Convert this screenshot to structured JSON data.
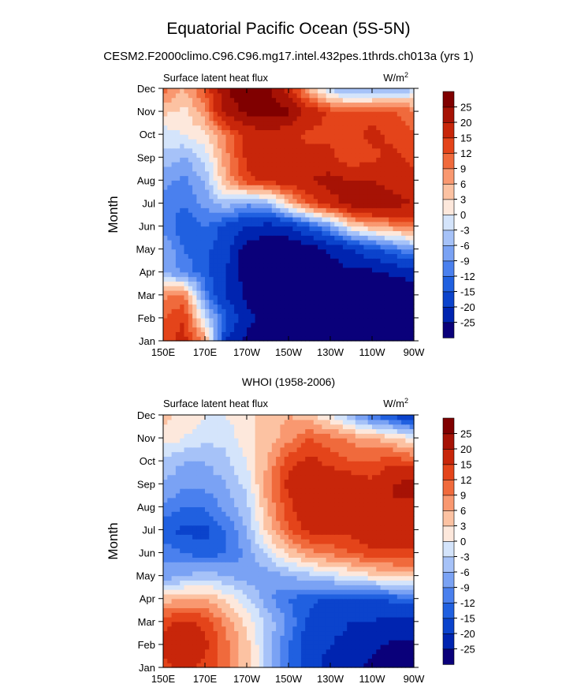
{
  "figure": {
    "title": "Equatorial Pacific Ocean (5S-5N)",
    "subtitle": "CESM2.F2000climo.C96.C96.mg17.intel.432pes.1thrds.ch013a (yrs 1)"
  },
  "colors": {
    "levels": [
      "#0a007a",
      "#0024b0",
      "#0b43cc",
      "#2060e0",
      "#4a80ee",
      "#7aa2f4",
      "#a6c2f8",
      "#d4e4fb",
      "#fde8dc",
      "#fcc2a2",
      "#f99870",
      "#f06a3c",
      "#e4441a",
      "#c8260a",
      "#a61205",
      "#800000"
    ],
    "axis": "#000000"
  },
  "chart_data": [
    {
      "type": "heatmap",
      "title": "",
      "left_label": "Surface latent heat flux",
      "units": "W/m",
      "units_superscript": "2",
      "xlabel": "",
      "ylabel": "Month",
      "x_ticks": [
        "150E",
        "170E",
        "170W",
        "150W",
        "130W",
        "110W",
        "90W"
      ],
      "x_tick_lon": [
        150,
        170,
        190,
        210,
        230,
        250,
        270
      ],
      "xlim": [
        150,
        270
      ],
      "y_ticks": [
        "Jan",
        "Feb",
        "Mar",
        "Apr",
        "May",
        "Jun",
        "Jul",
        "Aug",
        "Sep",
        "Oct",
        "Nov",
        "Dec"
      ],
      "y_tick_month": [
        1,
        2,
        3,
        4,
        5,
        6,
        7,
        8,
        9,
        10,
        11,
        12
      ],
      "ylim": [
        1,
        12
      ],
      "colorbar_levels": [
        "25",
        "20",
        "15",
        "12",
        "9",
        "6",
        "3",
        "0",
        "-3",
        "-6",
        "-9",
        "-12",
        "-15",
        "-20",
        "-25"
      ],
      "bounds": [
        -25,
        -20,
        -15,
        -12,
        -9,
        -6,
        -3,
        0,
        3,
        6,
        9,
        12,
        15,
        20,
        25
      ],
      "lon": [
        150,
        160,
        170,
        180,
        190,
        200,
        210,
        220,
        230,
        240,
        250,
        260,
        270
      ],
      "month": [
        1,
        2,
        3,
        4,
        5,
        6,
        7,
        8,
        9,
        10,
        11,
        12
      ],
      "values": [
        [
          14,
          16,
          8,
          -20,
          -26,
          -26,
          -26,
          -28,
          -30,
          -30,
          -30,
          -30,
          -30
        ],
        [
          12,
          15,
          -2,
          -14,
          -24,
          -26,
          -28,
          -28,
          -30,
          -30,
          -30,
          -30,
          -30
        ],
        [
          8,
          10,
          -10,
          -20,
          -26,
          -28,
          -28,
          -28,
          -30,
          -30,
          -30,
          -30,
          -30
        ],
        [
          -6,
          -10,
          -14,
          -20,
          -28,
          -30,
          -30,
          -30,
          -28,
          -26,
          -26,
          -24,
          -22
        ],
        [
          -6,
          -12,
          -14,
          -18,
          -28,
          -30,
          -30,
          -28,
          -24,
          -20,
          -16,
          -12,
          -8
        ],
        [
          -10,
          -14,
          -12,
          -16,
          -20,
          -22,
          -20,
          -14,
          -8,
          2,
          6,
          8,
          10
        ],
        [
          -10,
          -12,
          -8,
          -4,
          -8,
          -6,
          4,
          12,
          18,
          22,
          24,
          22,
          20
        ],
        [
          -8,
          -10,
          -6,
          6,
          14,
          16,
          18,
          20,
          22,
          20,
          20,
          18,
          16
        ],
        [
          -4,
          -6,
          -2,
          8,
          16,
          20,
          20,
          16,
          16,
          12,
          14,
          16,
          14
        ],
        [
          -2,
          0,
          2,
          10,
          16,
          18,
          16,
          14,
          14,
          14,
          16,
          14,
          12
        ],
        [
          4,
          2,
          8,
          22,
          26,
          28,
          26,
          18,
          14,
          12,
          14,
          12,
          10
        ],
        [
          10,
          6,
          12,
          24,
          30,
          26,
          18,
          4,
          -4,
          -8,
          -8,
          -6,
          -4
        ]
      ]
    },
    {
      "type": "heatmap",
      "title": "WHOI (1958-2006)",
      "left_label": "Surface latent heat flux",
      "units": "W/m",
      "units_superscript": "2",
      "xlabel": "",
      "ylabel": "Month",
      "x_ticks": [
        "150E",
        "170E",
        "170W",
        "150W",
        "130W",
        "110W",
        "90W"
      ],
      "x_tick_lon": [
        150,
        170,
        190,
        210,
        230,
        250,
        270
      ],
      "xlim": [
        150,
        270
      ],
      "y_ticks": [
        "Jan",
        "Feb",
        "Mar",
        "Apr",
        "May",
        "Jun",
        "Jul",
        "Aug",
        "Sep",
        "Oct",
        "Nov",
        "Dec"
      ],
      "y_tick_month": [
        1,
        2,
        3,
        4,
        5,
        6,
        7,
        8,
        9,
        10,
        11,
        12
      ],
      "ylim": [
        1,
        12
      ],
      "colorbar_levels": [
        "25",
        "20",
        "15",
        "12",
        "9",
        "6",
        "3",
        "0",
        "-3",
        "-6",
        "-9",
        "-12",
        "-15",
        "-20",
        "-25"
      ],
      "bounds": [
        -25,
        -20,
        -15,
        -12,
        -9,
        -6,
        -3,
        0,
        3,
        6,
        9,
        12,
        15,
        20,
        25
      ],
      "lon": [
        150,
        160,
        170,
        180,
        190,
        200,
        210,
        220,
        230,
        240,
        250,
        260,
        270
      ],
      "month": [
        1,
        2,
        3,
        4,
        5,
        6,
        7,
        8,
        9,
        10,
        11,
        12
      ],
      "values": [
        [
          14,
          16,
          14,
          10,
          4,
          -4,
          -12,
          -18,
          -22,
          -24,
          -26,
          -28,
          -28
        ],
        [
          16,
          18,
          16,
          10,
          4,
          -4,
          -12,
          -18,
          -20,
          -22,
          -24,
          -26,
          -26
        ],
        [
          14,
          16,
          14,
          8,
          2,
          -4,
          -10,
          -16,
          -18,
          -20,
          -20,
          -22,
          -22
        ],
        [
          4,
          6,
          6,
          2,
          -2,
          -8,
          -12,
          -14,
          -16,
          -16,
          -16,
          -14,
          -12
        ],
        [
          -8,
          -6,
          -4,
          -6,
          -8,
          -8,
          -6,
          -4,
          -2,
          0,
          2,
          4,
          4
        ],
        [
          -10,
          -12,
          -14,
          -12,
          -8,
          -2,
          4,
          8,
          10,
          12,
          14,
          14,
          14
        ],
        [
          -14,
          -16,
          -16,
          -12,
          -6,
          4,
          12,
          16,
          16,
          16,
          18,
          20,
          18
        ],
        [
          -10,
          -12,
          -12,
          -8,
          -4,
          6,
          14,
          18,
          20,
          20,
          20,
          20,
          18
        ],
        [
          -6,
          -8,
          -8,
          -6,
          -2,
          8,
          16,
          18,
          18,
          18,
          16,
          20,
          22
        ],
        [
          -4,
          -6,
          -6,
          -4,
          0,
          6,
          14,
          16,
          14,
          12,
          12,
          14,
          12
        ],
        [
          2,
          0,
          -2,
          -2,
          2,
          4,
          8,
          12,
          10,
          8,
          6,
          4,
          0
        ],
        [
          4,
          2,
          0,
          0,
          2,
          4,
          6,
          4,
          0,
          -6,
          -12,
          -16,
          -20
        ]
      ]
    }
  ]
}
